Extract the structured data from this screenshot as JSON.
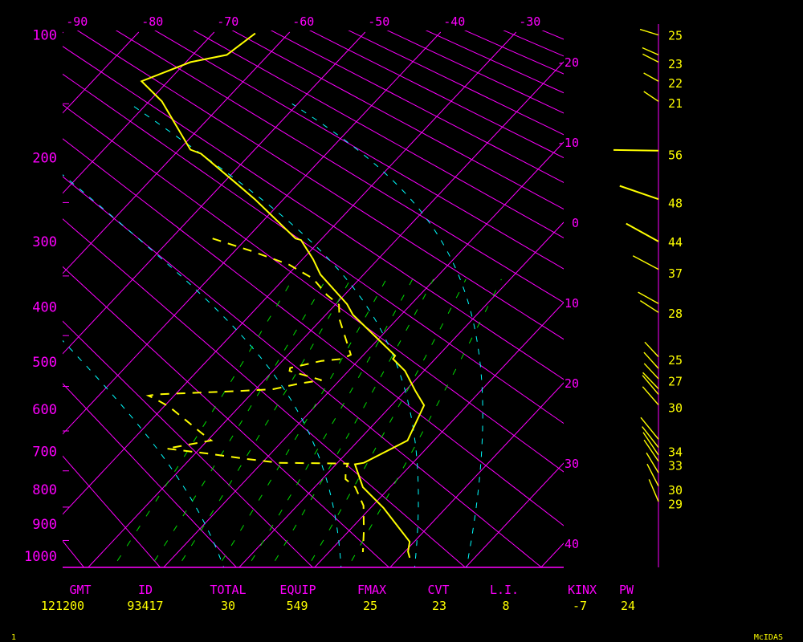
{
  "colors": {
    "background": "#000000",
    "grid": "#ff00ff",
    "profile": "#ffff00",
    "moist_adiabat": "#00ffff",
    "mixing_ratio": "#00dd00",
    "labels_header": "#ff00ff",
    "labels_value": "#ffff00"
  },
  "chart_data": {
    "type": "line",
    "diagram": "skew-T",
    "pressure_axis": {
      "ticks": [
        "100",
        "200",
        "300",
        "400",
        "500",
        "600",
        "700",
        "800",
        "900",
        "1000"
      ],
      "minor_tick_step_hPa": 50,
      "range": [
        100,
        1040
      ]
    },
    "temperature_top_ticks": [
      "-90",
      "-80",
      "-70",
      "-60",
      "-50",
      "-40",
      "-30"
    ],
    "temperature_right_ticks": [
      "-20",
      "-10",
      "0",
      "10",
      "20",
      "30",
      "40"
    ],
    "isotherm_step_C": 10,
    "dry_adiabats_K": {
      "min": 200,
      "max": 480,
      "step": 10
    },
    "moist_adiabats_start_C_at_1000": [
      -4,
      12,
      22,
      29
    ],
    "mixing_ratios_gkg": [
      1,
      1.5,
      2,
      3,
      4,
      5,
      7,
      10
    ],
    "series": [
      {
        "style": "solid",
        "points": [
          [
            99,
            -64.4
          ],
          [
            113,
            -65.5
          ],
          [
            118,
            -69.4
          ],
          [
            132,
            -73.5
          ],
          [
            148,
            -68.3
          ],
          [
            192,
            -58.5
          ],
          [
            196,
            -56.6
          ],
          [
            227,
            -48.4
          ],
          [
            246,
            -43.8
          ],
          [
            296,
            -33.5
          ],
          [
            298,
            -32.6
          ],
          [
            325,
            -28.6
          ],
          [
            348,
            -25.7
          ],
          [
            395,
            -18.5
          ],
          [
            413,
            -16.4
          ],
          [
            488,
            -5.7
          ],
          [
            494,
            -5.6
          ],
          [
            518,
            -2.5
          ],
          [
            560,
            1.4
          ],
          [
            591,
            4.3
          ],
          [
            673,
            6.5
          ],
          [
            729,
            3.5
          ],
          [
            733,
            2.5
          ],
          [
            794,
            6.4
          ],
          [
            852,
            11.7
          ],
          [
            954,
            19.4
          ],
          [
            985,
            20.4
          ],
          [
            1005,
            21.4
          ]
        ]
      },
      {
        "style": "dashed",
        "points": [
          [
            296,
            -44.5
          ],
          [
            313,
            -37.9
          ],
          [
            333,
            -31.1
          ],
          [
            354,
            -26.2
          ],
          [
            380,
            -22.3
          ],
          [
            396,
            -19.5
          ],
          [
            421,
            -17.6
          ],
          [
            486,
            -11.7
          ],
          [
            494,
            -12.3
          ],
          [
            498,
            -14.8
          ],
          [
            512,
            -18.1
          ],
          [
            518,
            -17.8
          ],
          [
            526,
            -15.5
          ],
          [
            537,
            -12.4
          ],
          [
            544,
            -14.9
          ],
          [
            556,
            -17.7
          ],
          [
            560,
            -22.1
          ],
          [
            567,
            -32.5
          ],
          [
            570,
            -33.4
          ],
          [
            577,
            -32.1
          ],
          [
            594,
            -29.3
          ],
          [
            656,
            -21.6
          ],
          [
            673,
            -19.5
          ],
          [
            693,
            -24.4
          ],
          [
            705,
            -18.5
          ],
          [
            719,
            -12.5
          ],
          [
            729,
            -7.8
          ],
          [
            731,
            1.5
          ],
          [
            746,
            1.9
          ],
          [
            772,
            3.1
          ],
          [
            794,
            5.4
          ],
          [
            846,
            8.8
          ],
          [
            921,
            12.0
          ],
          [
            987,
            14.5
          ]
        ]
      }
    ],
    "winds": [
      {
        "p": 100,
        "dir": 287,
        "speed": 24
      },
      {
        "p": 113,
        "dir": 294,
        "speed": 22
      },
      {
        "p": 118,
        "dir": 297,
        "speed": 22
      },
      {
        "p": 132,
        "dir": 299,
        "speed": 21
      },
      {
        "p": 148,
        "dir": 304,
        "speed": 22
      },
      {
        "p": 193,
        "dir": 271,
        "speed": 56
      },
      {
        "p": 246,
        "dir": 289,
        "speed": 51
      },
      {
        "p": 300,
        "dir": 299,
        "speed": 46
      },
      {
        "p": 340,
        "dir": 298,
        "speed": 36
      },
      {
        "p": 394,
        "dir": 299,
        "speed": 29
      },
      {
        "p": 409,
        "dir": 303,
        "speed": 27
      },
      {
        "p": 490,
        "dir": 317,
        "speed": 25
      },
      {
        "p": 513,
        "dir": 318,
        "speed": 27
      },
      {
        "p": 534,
        "dir": 317,
        "speed": 26
      },
      {
        "p": 555,
        "dir": 316,
        "speed": 28
      },
      {
        "p": 567,
        "dir": 320,
        "speed": 31
      },
      {
        "p": 590,
        "dir": 319,
        "speed": 30
      },
      {
        "p": 670,
        "dir": 321,
        "speed": 35
      },
      {
        "p": 690,
        "dir": 322,
        "speed": 33
      },
      {
        "p": 709,
        "dir": 326,
        "speed": 34
      },
      {
        "p": 725,
        "dir": 326,
        "speed": 32
      },
      {
        "p": 755,
        "dir": 329,
        "speed": 29
      },
      {
        "p": 791,
        "dir": 333,
        "speed": 31
      },
      {
        "p": 834,
        "dir": 337,
        "speed": 30
      }
    ],
    "wind_speed_labels": [
      {
        "p": 100,
        "text": "25"
      },
      {
        "p": 119,
        "text": "23"
      },
      {
        "p": 133,
        "text": "22"
      },
      {
        "p": 149,
        "text": "21"
      },
      {
        "p": 197,
        "text": "56"
      },
      {
        "p": 250,
        "text": "48"
      },
      {
        "p": 300,
        "text": "44"
      },
      {
        "p": 345,
        "text": "37"
      },
      {
        "p": 410,
        "text": "28"
      },
      {
        "p": 495,
        "text": "25"
      },
      {
        "p": 538,
        "text": "27"
      },
      {
        "p": 595,
        "text": "30"
      },
      {
        "p": 700,
        "text": "34"
      },
      {
        "p": 735,
        "text": "33"
      },
      {
        "p": 800,
        "text": "30"
      },
      {
        "p": 840,
        "text": "29"
      }
    ]
  },
  "stats": {
    "headers": [
      "GMT",
      "ID",
      "TOTAL",
      "EQUIP",
      "FMAX",
      "CVT",
      "L.I.",
      "KINX",
      "PW"
    ],
    "values": [
      "121200",
      "93417",
      "30",
      "549",
      "25",
      "23",
      "8",
      "-7",
      "24"
    ]
  },
  "footer": {
    "frame_number": "1",
    "brand": "McIDAS"
  }
}
